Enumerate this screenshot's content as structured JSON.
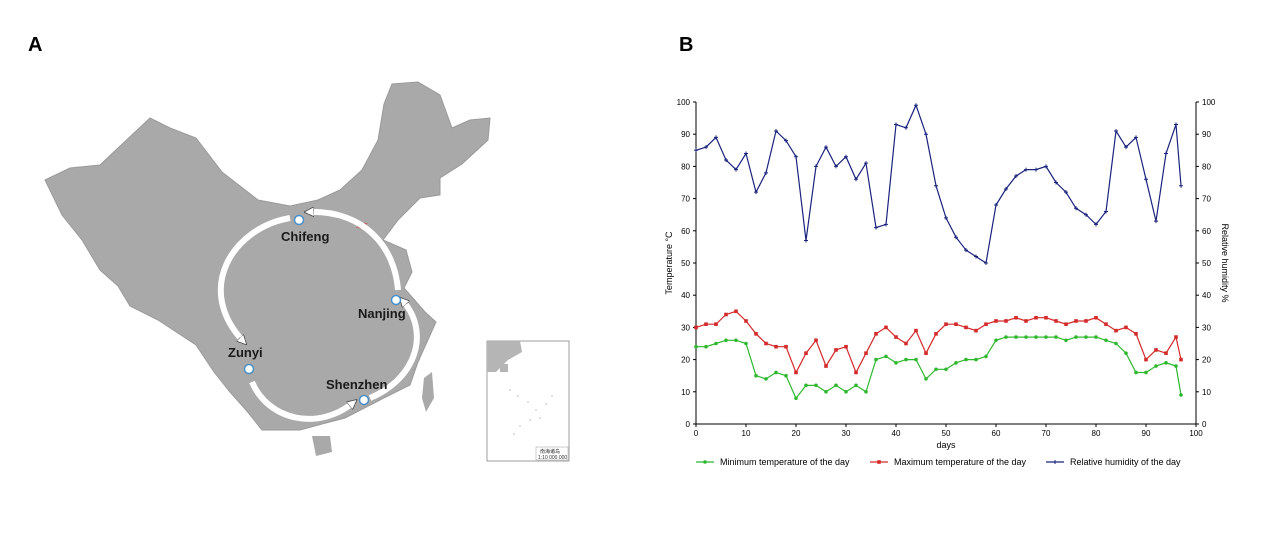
{
  "panels": {
    "a_label": "A",
    "b_label": "B"
  },
  "map": {
    "cities": [
      "Chifeng",
      "Nanjing",
      "Shenzhen",
      "Zunyi"
    ],
    "route_order": [
      "Chifeng",
      "Zunyi",
      "Shenzhen",
      "Nanjing",
      "Chifeng"
    ],
    "land_color": "#a9a9a9",
    "inset_label": "南海诸岛",
    "inset_scale": "1:10 000 000"
  },
  "chart_data": {
    "type": "line",
    "xlabel": "days",
    "ylabel_left": "Temperature °C",
    "ylabel_right": "Relative humidity %",
    "xlim": [
      0,
      100
    ],
    "ylim_left": [
      0,
      100
    ],
    "ylim_right": [
      0,
      100
    ],
    "xticks": [
      0,
      10,
      20,
      30,
      40,
      50,
      60,
      70,
      80,
      90,
      100
    ],
    "yticks": [
      0,
      10,
      20,
      30,
      40,
      50,
      60,
      70,
      80,
      90,
      100
    ],
    "legend_position": "bottom",
    "series": [
      {
        "name": "Minimum temperature of the day",
        "color": "#2db82d",
        "marker": "circle",
        "x": [
          0,
          2,
          4,
          6,
          8,
          10,
          12,
          14,
          16,
          18,
          20,
          22,
          24,
          26,
          28,
          30,
          32,
          34,
          36,
          38,
          40,
          42,
          44,
          46,
          48,
          50,
          52,
          54,
          56,
          58,
          60,
          62,
          64,
          66,
          68,
          70,
          72,
          74,
          76,
          78,
          80,
          82,
          84,
          86,
          88,
          90,
          92,
          94,
          96,
          97
        ],
        "y": [
          24,
          24,
          25,
          26,
          26,
          25,
          15,
          14,
          16,
          15,
          8,
          12,
          12,
          10,
          12,
          10,
          12,
          10,
          20,
          21,
          19,
          20,
          20,
          14,
          17,
          17,
          19,
          20,
          20,
          21,
          26,
          27,
          27,
          27,
          27,
          27,
          27,
          26,
          27,
          27,
          27,
          26,
          25,
          22,
          16,
          16,
          18,
          19,
          18,
          9
        ]
      },
      {
        "name": "Maximum temperature of the day",
        "color": "#d42a2a",
        "marker": "square",
        "x": [
          0,
          2,
          4,
          6,
          8,
          10,
          12,
          14,
          16,
          18,
          20,
          22,
          24,
          26,
          28,
          30,
          32,
          34,
          36,
          38,
          40,
          42,
          44,
          46,
          48,
          50,
          52,
          54,
          56,
          58,
          60,
          62,
          64,
          66,
          68,
          70,
          72,
          74,
          76,
          78,
          80,
          82,
          84,
          86,
          88,
          90,
          92,
          94,
          96,
          97
        ],
        "y": [
          30,
          31,
          31,
          34,
          35,
          32,
          28,
          25,
          24,
          24,
          16,
          22,
          26,
          18,
          23,
          24,
          16,
          22,
          28,
          30,
          27,
          25,
          29,
          22,
          28,
          31,
          31,
          30,
          29,
          31,
          32,
          32,
          33,
          32,
          33,
          33,
          32,
          31,
          32,
          32,
          33,
          31,
          29,
          30,
          28,
          20,
          23,
          22,
          27,
          20
        ]
      },
      {
        "name": "Relative humidity of the day",
        "color": "#1a237e",
        "marker": "cross",
        "x": [
          0,
          2,
          4,
          6,
          8,
          10,
          12,
          14,
          16,
          18,
          20,
          22,
          24,
          26,
          28,
          30,
          32,
          34,
          36,
          38,
          40,
          42,
          44,
          46,
          48,
          50,
          52,
          54,
          56,
          58,
          60,
          62,
          64,
          66,
          68,
          70,
          72,
          74,
          76,
          78,
          80,
          82,
          84,
          86,
          88,
          90,
          92,
          94,
          96,
          97
        ],
        "y": [
          85,
          86,
          89,
          82,
          79,
          84,
          72,
          78,
          91,
          88,
          83,
          57,
          80,
          86,
          80,
          83,
          76,
          81,
          61,
          62,
          93,
          92,
          99,
          90,
          74,
          64,
          58,
          54,
          52,
          50,
          68,
          73,
          77,
          79,
          79,
          80,
          75,
          72,
          67,
          65,
          62,
          66,
          91,
          86,
          89,
          76,
          63,
          84,
          93,
          74
        ]
      }
    ]
  }
}
